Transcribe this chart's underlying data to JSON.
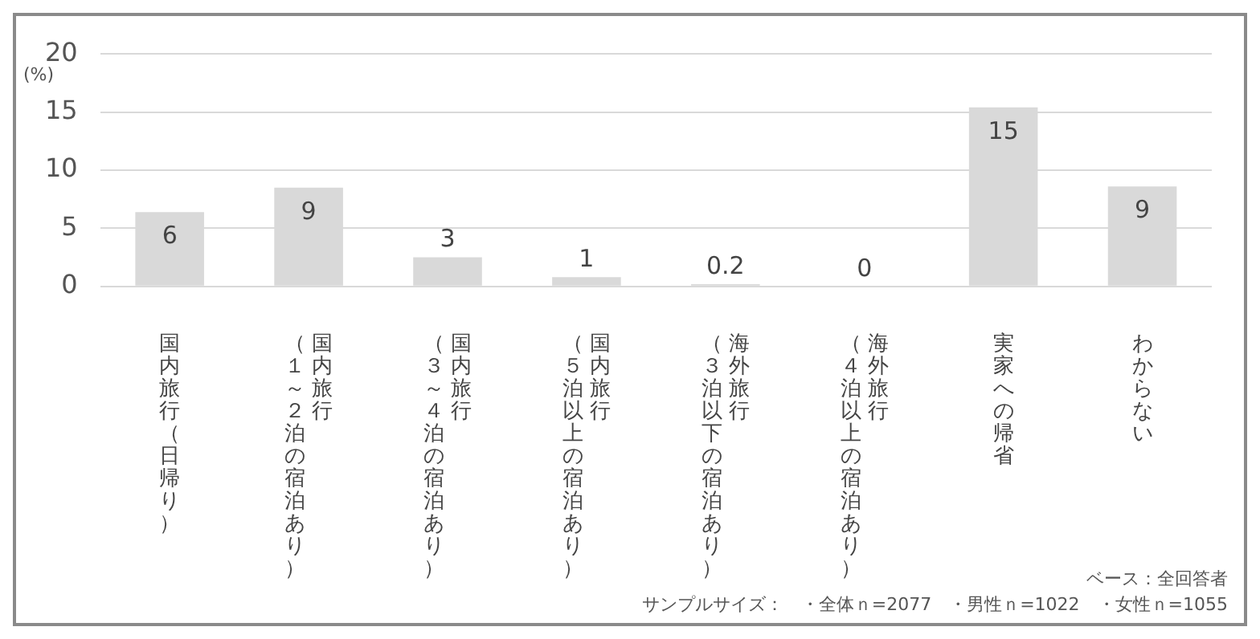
{
  "chart_data": {
    "type": "bar",
    "ylabel": "(%)",
    "categories": [
      "国内旅行（日帰り）",
      "国内旅行（１～２泊の宿泊あり）",
      "国内旅行（３～４泊の宿泊あり）",
      "国内旅行（５泊以上の宿泊あり）",
      "海外旅行（３泊以下の宿泊あり）",
      "海外旅行（４泊以上の宿泊あり）",
      "実家への帰省",
      "わからない"
    ],
    "values": [
      6.4,
      8.5,
      2.5,
      0.8,
      0.2,
      0,
      15.4,
      8.6
    ],
    "value_labels": [
      "6",
      "9",
      "3",
      "1",
      "0.2",
      "0",
      "15",
      "9"
    ],
    "color": "#d9d9d9",
    "ylim": [
      0,
      20
    ],
    "yticks": [
      0,
      5,
      10,
      15,
      20
    ],
    "grid": "y",
    "legend": false,
    "annotations": [
      "ベース：全回答者",
      "サンプルサイズ：　・全体ｎ=2077　・男性ｎ=1022　・女性ｎ=1055"
    ]
  }
}
